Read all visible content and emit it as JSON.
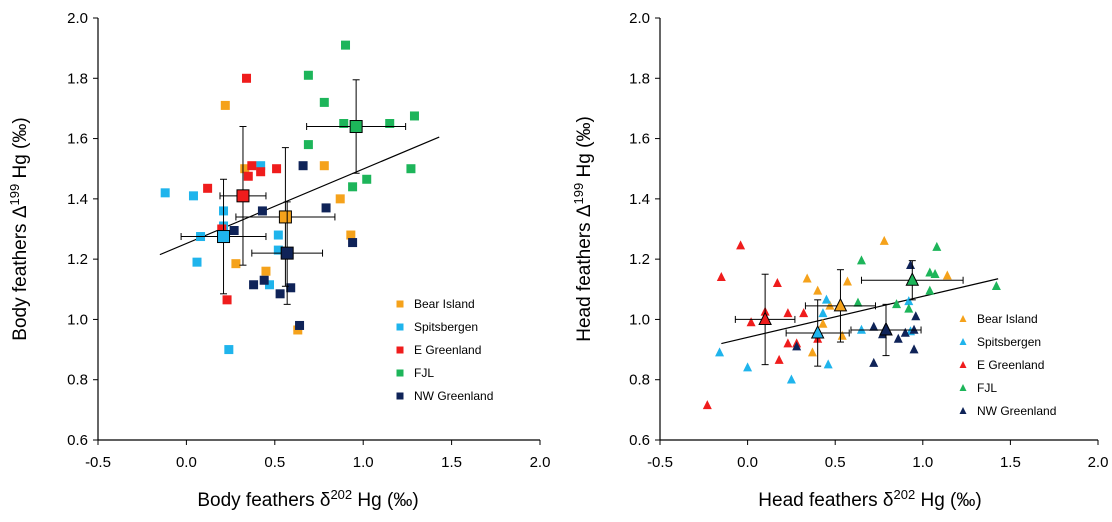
{
  "chart_data": [
    {
      "type": "scatter",
      "title": "",
      "xlabel_main": "Body feathers δ",
      "xlabel_sup": "202",
      "xlabel_tail": " Hg (‰)",
      "ylabel_main": "Body feathers Δ",
      "ylabel_sup": "199",
      "ylabel_tail": " Hg (‰)",
      "xlim": [
        -0.5,
        2.0
      ],
      "ylim": [
        0.6,
        2.0
      ],
      "xticks": [
        "-0.5",
        "0.0",
        "0.5",
        "1.0",
        "1.5",
        "2.0"
      ],
      "yticks": [
        "0.6",
        "0.8",
        "1.0",
        "1.2",
        "1.4",
        "1.6",
        "1.8",
        "2.0"
      ],
      "marker": "square",
      "legend_position": "bottom-right",
      "trendline": {
        "x": [
          -0.15,
          1.43
        ],
        "y": [
          1.215,
          1.605
        ]
      },
      "series": [
        {
          "name": "Bear Island",
          "color": "#f5a21b",
          "x": [
            0.22,
            0.33,
            0.28,
            0.45,
            0.78,
            0.87,
            0.93,
            0.63
          ],
          "y": [
            1.71,
            1.5,
            1.185,
            1.16,
            1.51,
            1.4,
            1.28,
            0.965
          ],
          "mean": {
            "x": 0.56,
            "y": 1.34,
            "xerr": 0.28,
            "yerr": 0.23
          }
        },
        {
          "name": "Spitsbergen",
          "color": "#1fb4ec",
          "x": [
            -0.12,
            0.04,
            0.08,
            0.06,
            0.21,
            0.21,
            0.42,
            0.47,
            0.52,
            0.52,
            0.24
          ],
          "y": [
            1.42,
            1.41,
            1.275,
            1.19,
            1.36,
            1.31,
            1.51,
            1.115,
            1.28,
            1.23,
            0.9
          ],
          "mean": {
            "x": 0.21,
            "y": 1.275,
            "xerr": 0.24,
            "yerr": 0.19
          }
        },
        {
          "name": "E Greenland",
          "color": "#ef1c1c",
          "x": [
            0.12,
            0.34,
            0.37,
            0.35,
            0.42,
            0.51,
            0.2,
            0.23
          ],
          "y": [
            1.435,
            1.8,
            1.51,
            1.475,
            1.49,
            1.5,
            1.3,
            1.065
          ],
          "mean": {
            "x": 0.32,
            "y": 1.41,
            "xerr": 0.13,
            "yerr": 0.23
          }
        },
        {
          "name": "FJL",
          "color": "#1db55a",
          "x": [
            0.9,
            0.69,
            0.78,
            0.69,
            0.89,
            0.94,
            1.02,
            1.15,
            1.27,
            1.29
          ],
          "y": [
            1.91,
            1.81,
            1.72,
            1.58,
            1.65,
            1.44,
            1.465,
            1.65,
            1.5,
            1.675
          ],
          "mean": {
            "x": 0.96,
            "y": 1.64,
            "xerr": 0.28,
            "yerr": 0.155
          }
        },
        {
          "name": "NW Greenland",
          "color": "#0f2358",
          "x": [
            0.27,
            0.43,
            0.66,
            0.79,
            0.94,
            0.38,
            0.44,
            0.53,
            0.59,
            0.64
          ],
          "y": [
            1.295,
            1.36,
            1.51,
            1.37,
            1.255,
            1.115,
            1.13,
            1.085,
            1.105,
            0.98
          ],
          "mean": {
            "x": 0.57,
            "y": 1.22,
            "xerr": 0.2,
            "yerr": 0.17
          }
        }
      ]
    },
    {
      "type": "scatter",
      "title": "",
      "xlabel_main": "Head feathers δ",
      "xlabel_sup": "202",
      "xlabel_tail": " Hg (‰)",
      "ylabel_main": "Head feathers Δ",
      "ylabel_sup": "199",
      "ylabel_tail": " Hg (‰)",
      "xlim": [
        -0.5,
        2.0
      ],
      "ylim": [
        0.6,
        2.0
      ],
      "xticks": [
        "-0.5",
        "0.0",
        "0.5",
        "1.0",
        "1.5",
        "2.0"
      ],
      "yticks": [
        "0.6",
        "0.8",
        "1.0",
        "1.2",
        "1.4",
        "1.6",
        "1.8",
        "2.0"
      ],
      "marker": "triangle",
      "legend_position": "bottom-right",
      "trendline": {
        "x": [
          -0.15,
          1.43
        ],
        "y": [
          0.92,
          1.135
        ]
      },
      "series": [
        {
          "name": "Bear Island",
          "color": "#f5a21b",
          "x": [
            0.34,
            0.4,
            0.57,
            0.78,
            1.14,
            0.43,
            0.47,
            0.54,
            0.37
          ],
          "y": [
            1.135,
            1.095,
            1.125,
            1.26,
            1.145,
            0.985,
            1.045,
            0.945,
            0.89
          ],
          "mean": {
            "x": 0.53,
            "y": 1.045,
            "xerr": 0.2,
            "yerr": 0.12
          }
        },
        {
          "name": "Spitsbergen",
          "color": "#1fb4ec",
          "x": [
            -0.16,
            0.0,
            0.25,
            0.45,
            0.43,
            0.65,
            0.92,
            0.93,
            0.46
          ],
          "y": [
            0.89,
            0.84,
            0.8,
            1.065,
            1.02,
            0.965,
            1.06,
            0.96,
            0.85
          ],
          "mean": {
            "x": 0.4,
            "y": 0.955,
            "xerr": 0.18,
            "yerr": 0.11
          }
        },
        {
          "name": "E Greenland",
          "color": "#ef1c1c",
          "x": [
            -0.04,
            -0.15,
            0.02,
            0.1,
            0.17,
            0.23,
            0.32,
            0.23,
            0.28,
            0.4,
            0.18,
            -0.23
          ],
          "y": [
            1.245,
            1.14,
            0.99,
            1.025,
            1.12,
            1.02,
            1.02,
            0.92,
            0.92,
            0.935,
            0.865,
            0.715
          ],
          "mean": {
            "x": 0.1,
            "y": 1.0,
            "xerr": 0.17,
            "yerr": 0.15
          }
        },
        {
          "name": "FJL",
          "color": "#1db55a",
          "x": [
            0.65,
            1.04,
            1.08,
            1.07,
            1.04,
            1.42,
            0.63,
            0.85,
            0.92
          ],
          "y": [
            1.195,
            1.155,
            1.24,
            1.15,
            1.095,
            1.11,
            1.055,
            1.05,
            1.035
          ],
          "mean": {
            "x": 0.94,
            "y": 1.13,
            "xerr": 0.29,
            "yerr": 0.065
          }
        },
        {
          "name": "NW Greenland",
          "color": "#0f2358",
          "x": [
            0.93,
            0.96,
            0.72,
            0.77,
            0.79,
            0.86,
            0.9,
            0.95,
            0.28,
            0.72,
            0.95
          ],
          "y": [
            1.18,
            1.01,
            0.975,
            0.95,
            0.975,
            0.935,
            0.955,
            0.965,
            0.91,
            0.855,
            0.9
          ],
          "mean": {
            "x": 0.79,
            "y": 0.965,
            "xerr": 0.2,
            "yerr": 0.085
          }
        }
      ]
    }
  ]
}
